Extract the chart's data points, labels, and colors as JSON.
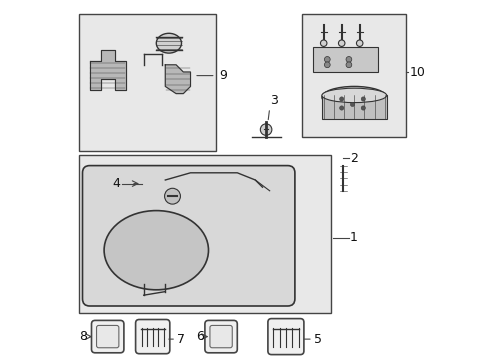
{
  "bg_color": "#ffffff",
  "fig_width": 4.89,
  "fig_height": 3.6,
  "dpi": 100,
  "line_color": "#333333",
  "text_color": "#111111"
}
